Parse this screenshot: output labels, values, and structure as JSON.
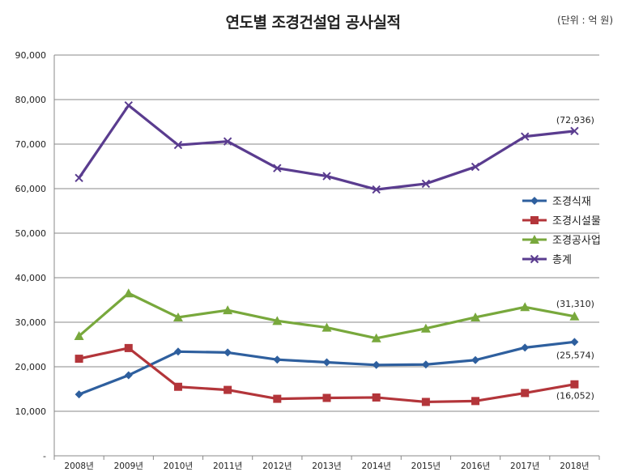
{
  "header": {
    "title": "연도별 조경건설업 공사실적",
    "unit": "(단위 : 억 원)"
  },
  "chart_data": {
    "type": "line",
    "title": "연도별 조경건설업 공사실적",
    "xlabel": "",
    "ylabel": "",
    "categories": [
      "2008년",
      "2009년",
      "2010년",
      "2011년",
      "2012년",
      "2013년",
      "2014년",
      "2015년",
      "2016년",
      "2017년",
      "2018년"
    ],
    "ylim": [
      0,
      90000
    ],
    "y_ticks": [
      "-",
      "10,000",
      "20,000",
      "30,000",
      "40,000",
      "50,000",
      "60,000",
      "70,000",
      "80,000",
      "90,000"
    ],
    "grid": true,
    "legend_position": "right",
    "series": [
      {
        "name": "조경식재",
        "color": "#2e5f9e",
        "marker": "diamond",
        "values": [
          13800,
          18100,
          23400,
          23200,
          21600,
          21000,
          20400,
          20500,
          21500,
          24300,
          25574
        ],
        "end_label": "(25,574)"
      },
      {
        "name": "조경시설물",
        "color": "#b3353a",
        "marker": "square",
        "values": [
          21800,
          24200,
          15500,
          14800,
          12800,
          13000,
          13100,
          12100,
          12300,
          14100,
          16052
        ],
        "end_label": "(16,052)"
      },
      {
        "name": "조경공사업",
        "color": "#78a83c",
        "marker": "triangle",
        "values": [
          26900,
          36500,
          31100,
          32700,
          30300,
          28800,
          26400,
          28600,
          31100,
          33400,
          31310
        ],
        "end_label": "(31,310)"
      },
      {
        "name": "총계",
        "color": "#5a3c8f",
        "marker": "x",
        "values": [
          62400,
          78700,
          69800,
          70600,
          64600,
          62800,
          59800,
          61100,
          64900,
          71700,
          72936
        ],
        "end_label": "(72,936)"
      }
    ]
  }
}
